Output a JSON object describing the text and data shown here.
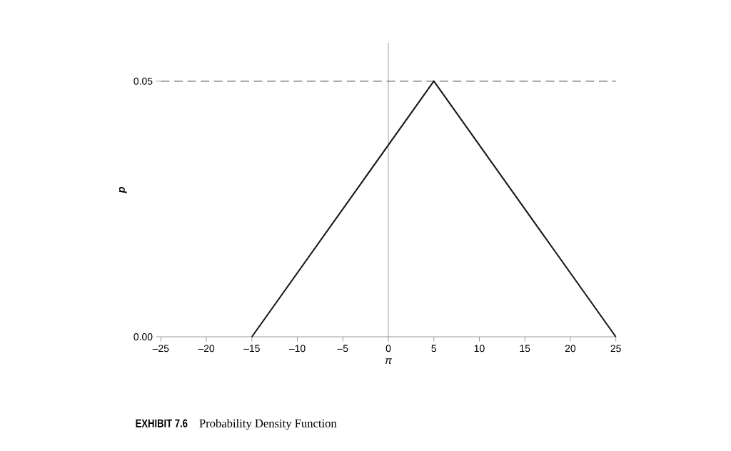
{
  "chart_data": {
    "type": "line",
    "xlabel": "π",
    "ylabel": "p",
    "annotations": [
      "EXHIBIT 7.6",
      "Probability Density Function"
    ],
    "series": [
      {
        "color": "#1a1a1a",
        "x": [
          -15,
          5,
          25
        ],
        "values": [
          0,
          0.05,
          0
        ]
      }
    ],
    "xlim": [
      -25,
      25
    ],
    "ylim": [
      0,
      0.0575
    ],
    "xticks": [
      {
        "value": -25,
        "label": "–25"
      },
      {
        "value": -20,
        "label": "–20"
      },
      {
        "value": -15,
        "label": "–15"
      },
      {
        "value": -10,
        "label": "–10"
      },
      {
        "value": -5,
        "label": "–5"
      },
      0,
      5,
      10,
      15,
      20,
      25
    ],
    "yticks": [
      {
        "value": 0,
        "label": "0.00"
      },
      {
        "value": 0.05,
        "label": "0.05"
      }
    ],
    "ref_lines": [
      {
        "axis": "y",
        "value": 0.05,
        "color": "#808080",
        "line_style": "dashed"
      },
      {
        "axis": "x",
        "value": 0,
        "color": "#707070",
        "line_style": "solid"
      }
    ],
    "marker": "none",
    "line_style": "solid"
  }
}
